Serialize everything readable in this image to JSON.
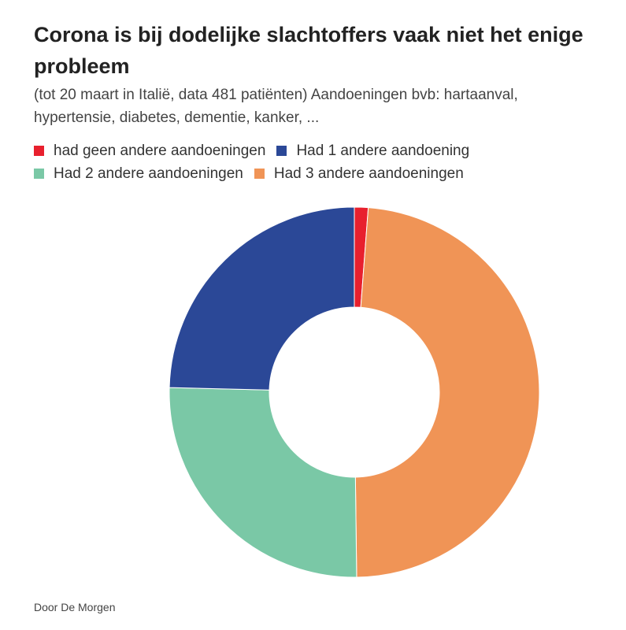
{
  "title": "Corona is bij dodelijke slachtoffers vaak niet het enige probleem",
  "subtitle": "(tot 20 maart in Italië, data 481 patiënten) Aandoeningen bvb: hartaanval, hypertensie, diabetes, dementie, kanker, ...",
  "credit": "Door De Morgen",
  "chart_data": {
    "type": "pie",
    "style": "donut",
    "legend_position": "top",
    "series": [
      {
        "name": "had geen andere aandoeningen",
        "value": 1.2,
        "color": "#E8202E"
      },
      {
        "name": "Had 3 andere aandoeningen",
        "value": 48.6,
        "color": "#F09456"
      },
      {
        "name": "Had 2 andere aandoeningen",
        "value": 25.6,
        "color": "#7AC8A6"
      },
      {
        "name": "Had 1 andere aandoening",
        "value": 24.6,
        "color": "#2B4897"
      }
    ],
    "legend_order": [
      "had geen andere aandoeningen",
      "Had 1 andere aandoening",
      "Had 2 andere aandoeningen",
      "Had 3 andere aandoeningen"
    ]
  }
}
